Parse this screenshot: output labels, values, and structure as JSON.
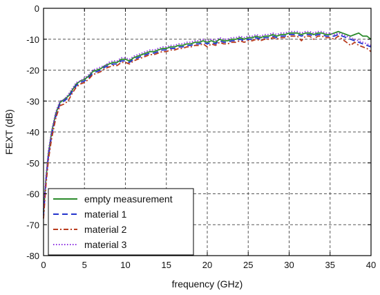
{
  "chart_data": {
    "type": "line",
    "title": "",
    "xlabel": "frequency (GHz)",
    "ylabel": "FEXT (dB)",
    "xlim": [
      0,
      40
    ],
    "ylim": [
      -80,
      0
    ],
    "xticks": [
      0,
      5,
      10,
      15,
      20,
      25,
      30,
      35,
      40
    ],
    "yticks": [
      0,
      -10,
      -20,
      -30,
      -40,
      -50,
      -60,
      -70,
      -80
    ],
    "grid": true,
    "grid_style": "dashed",
    "legend_position": "bottom-left",
    "series": [
      {
        "name": "empty measurement",
        "color": "#2a8a2a",
        "dash": "solid",
        "x": [
          0,
          0.3,
          0.6,
          1,
          1.5,
          2,
          2.5,
          3,
          3.5,
          4,
          4.5,
          5,
          5.5,
          6,
          6.5,
          7,
          7.5,
          8,
          8.5,
          9,
          9.5,
          10,
          10.5,
          11,
          11.5,
          12,
          12.5,
          13,
          13.5,
          14,
          14.5,
          15,
          15.5,
          16,
          16.5,
          17,
          17.5,
          18,
          18.5,
          19,
          19.5,
          20,
          20.5,
          21,
          21.5,
          22,
          22.5,
          23,
          23.5,
          24,
          24.5,
          25,
          25.5,
          26,
          26.5,
          27,
          27.5,
          28,
          28.5,
          29,
          29.5,
          30,
          30.5,
          31,
          31.5,
          32,
          32.5,
          33,
          33.5,
          34,
          34.5,
          35,
          35.5,
          36,
          36.5,
          37,
          37.5,
          38,
          38.5,
          39,
          39.5,
          40
        ],
        "y": [
          -66,
          -55,
          -47,
          -40,
          -34,
          -30.5,
          -29.5,
          -28.5,
          -26.5,
          -24.5,
          -23.5,
          -23,
          -22,
          -20.5,
          -20,
          -19.5,
          -18.5,
          -18,
          -17.5,
          -17.5,
          -16.5,
          -16.5,
          -17,
          -16,
          -15.5,
          -15,
          -14.5,
          -14,
          -14,
          -13.5,
          -13,
          -13,
          -12.5,
          -12.5,
          -12,
          -12,
          -11.5,
          -11.5,
          -11,
          -11,
          -10.5,
          -11,
          -10.5,
          -11,
          -10,
          -10.5,
          -10.5,
          -10,
          -10,
          -9.5,
          -10,
          -9.5,
          -9.5,
          -9,
          -9.5,
          -9,
          -9,
          -8.5,
          -9,
          -8.5,
          -8.5,
          -8,
          -8,
          -8,
          -8.5,
          -8,
          -8,
          -8.5,
          -8,
          -8,
          -8.5,
          -8.5,
          -8,
          -7.5,
          -8,
          -8.5,
          -9,
          -8.5,
          -8,
          -9,
          -9,
          -10
        ]
      },
      {
        "name": "material 1",
        "color": "#2233cc",
        "dash": "dashed",
        "x": [
          0,
          0.3,
          0.6,
          1,
          1.5,
          2,
          2.5,
          3,
          3.5,
          4,
          4.5,
          5,
          5.5,
          6,
          6.5,
          7,
          7.5,
          8,
          8.5,
          9,
          9.5,
          10,
          10.5,
          11,
          11.5,
          12,
          12.5,
          13,
          13.5,
          14,
          14.5,
          15,
          15.5,
          16,
          16.5,
          17,
          17.5,
          18,
          18.5,
          19,
          19.5,
          20,
          20.5,
          21,
          21.5,
          22,
          22.5,
          23,
          23.5,
          24,
          24.5,
          25,
          25.5,
          26,
          26.5,
          27,
          27.5,
          28,
          28.5,
          29,
          29.5,
          30,
          30.5,
          31,
          31.5,
          32,
          32.5,
          33,
          33.5,
          34,
          34.5,
          35,
          35.5,
          36,
          36.5,
          37,
          37.5,
          38,
          38.5,
          39,
          39.5,
          40
        ],
        "y": [
          -67,
          -56,
          -48,
          -41,
          -35,
          -31,
          -30,
          -29,
          -27,
          -25,
          -24,
          -23.5,
          -22.5,
          -21,
          -20.5,
          -20,
          -19,
          -18.5,
          -18,
          -18,
          -17,
          -17,
          -17.5,
          -16.5,
          -16,
          -15.5,
          -15,
          -14.5,
          -14.5,
          -14,
          -13.5,
          -13.5,
          -13,
          -13,
          -12.5,
          -12.5,
          -12,
          -12,
          -11.5,
          -11.5,
          -11,
          -11.5,
          -11,
          -11.5,
          -10.5,
          -11,
          -11,
          -10.5,
          -10.5,
          -10,
          -10.5,
          -10,
          -10,
          -9.5,
          -10,
          -9.5,
          -9.5,
          -9,
          -9.5,
          -9,
          -9,
          -8.5,
          -8.5,
          -8.5,
          -9,
          -8.5,
          -8.5,
          -9,
          -8.5,
          -8.5,
          -9,
          -9,
          -9,
          -8.5,
          -9,
          -9.5,
          -10,
          -10.5,
          -11,
          -11.5,
          -12,
          -12.5
        ]
      },
      {
        "name": "material 2",
        "color": "#b83a1c",
        "dash": "dashdot",
        "x": [
          0,
          0.3,
          0.6,
          1,
          1.5,
          2,
          2.5,
          3,
          3.5,
          4,
          4.5,
          5,
          5.5,
          6,
          6.5,
          7,
          7.5,
          8,
          8.5,
          9,
          9.5,
          10,
          10.5,
          11,
          11.5,
          12,
          12.5,
          13,
          13.5,
          14,
          14.5,
          15,
          15.5,
          16,
          16.5,
          17,
          17.5,
          18,
          18.5,
          19,
          19.5,
          20,
          20.5,
          21,
          21.5,
          22,
          22.5,
          23,
          23.5,
          24,
          24.5,
          25,
          25.5,
          26,
          26.5,
          27,
          27.5,
          28,
          28.5,
          29,
          29.5,
          30,
          30.5,
          31,
          31.5,
          32,
          32.5,
          33,
          33.5,
          34,
          34.5,
          35,
          35.5,
          36,
          36.5,
          37,
          37.5,
          38,
          38.5,
          39,
          39.5,
          40
        ],
        "y": [
          -68,
          -57,
          -49,
          -42,
          -35.5,
          -31.5,
          -31,
          -30,
          -27.5,
          -25.5,
          -24.5,
          -24,
          -23,
          -21.5,
          -21,
          -20.5,
          -19.5,
          -19,
          -18.5,
          -18.5,
          -17.5,
          -17.5,
          -18,
          -17,
          -16.5,
          -16,
          -15.5,
          -15,
          -15,
          -14.5,
          -14,
          -14,
          -13.5,
          -13.5,
          -13,
          -13,
          -12.5,
          -12.5,
          -12,
          -12,
          -11.5,
          -12.5,
          -11.5,
          -12,
          -11,
          -11.5,
          -11.5,
          -11,
          -11,
          -10.5,
          -11,
          -10.5,
          -10.5,
          -10,
          -10.5,
          -10,
          -10,
          -9.5,
          -10,
          -9.5,
          -9.5,
          -9,
          -9,
          -9,
          -10.5,
          -9,
          -9,
          -10,
          -9,
          -9,
          -9.5,
          -9.5,
          -10,
          -9,
          -10,
          -11,
          -12,
          -11,
          -12,
          -12.5,
          -13,
          -14
        ]
      },
      {
        "name": "material 3",
        "color": "#8a2be2",
        "dash": "dotted",
        "x": [
          0,
          0.3,
          0.6,
          1,
          1.5,
          2,
          2.5,
          3,
          3.5,
          4,
          4.5,
          5,
          5.5,
          6,
          6.5,
          7,
          7.5,
          8,
          8.5,
          9,
          9.5,
          10,
          10.5,
          11,
          11.5,
          12,
          12.5,
          13,
          13.5,
          14,
          14.5,
          15,
          15.5,
          16,
          16.5,
          17,
          17.5,
          18,
          18.5,
          19,
          19.5,
          20,
          20.5,
          21,
          21.5,
          22,
          22.5,
          23,
          23.5,
          24,
          24.5,
          25,
          25.5,
          26,
          26.5,
          27,
          27.5,
          28,
          28.5,
          29,
          29.5,
          30,
          30.5,
          31,
          31.5,
          32,
          32.5,
          33,
          33.5,
          34,
          34.5,
          35,
          35.5,
          36,
          36.5,
          37,
          37.5,
          38,
          38.5,
          39,
          39.5,
          40
        ],
        "y": [
          -65,
          -54,
          -46,
          -39.5,
          -33.5,
          -30,
          -29.5,
          -28,
          -26,
          -24,
          -23.5,
          -22.5,
          -21.5,
          -20,
          -19.5,
          -19,
          -18.5,
          -17.5,
          -17,
          -17,
          -16,
          -16,
          -16.5,
          -15.5,
          -15,
          -14.5,
          -14,
          -13.5,
          -13.5,
          -13,
          -12.5,
          -12.5,
          -12,
          -12,
          -11.5,
          -11.5,
          -11,
          -11,
          -10.5,
          -10.5,
          -10,
          -10.5,
          -10,
          -10.5,
          -9.5,
          -10,
          -10,
          -9.5,
          -9.5,
          -9,
          -9.5,
          -9,
          -9,
          -8.5,
          -9,
          -8.5,
          -8.5,
          -8,
          -8.5,
          -8,
          -8,
          -7.5,
          -7.5,
          -7.5,
          -8,
          -7.5,
          -7.5,
          -8,
          -7.5,
          -7.5,
          -8,
          -8,
          -8.5,
          -8,
          -8.5,
          -9,
          -9.5,
          -10,
          -10.5,
          -11,
          -11.5,
          -12
        ]
      }
    ]
  }
}
